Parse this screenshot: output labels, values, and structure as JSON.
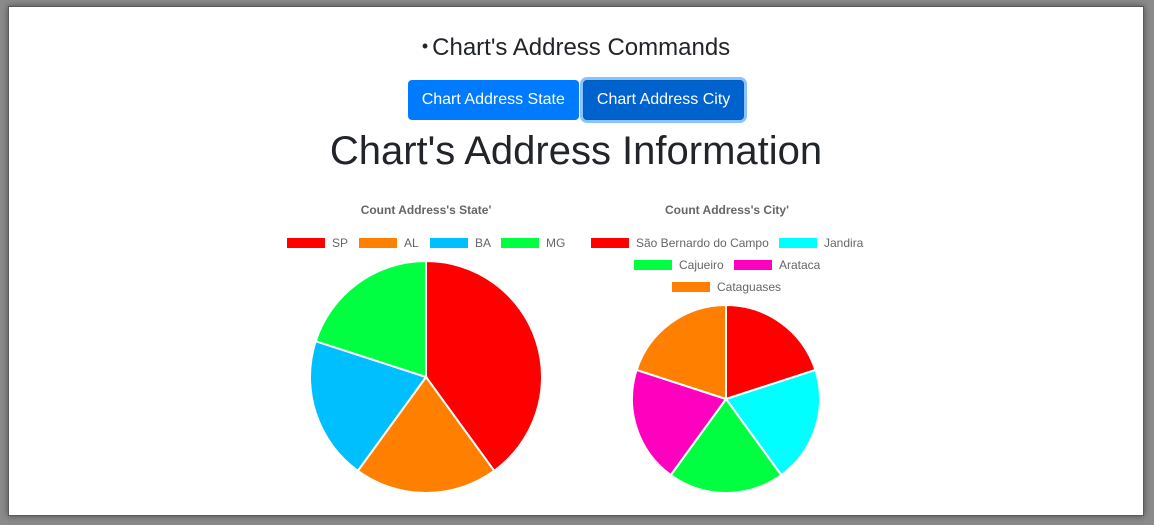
{
  "header": {
    "commands_title": "Chart's Address Commands",
    "buttons": [
      {
        "label": "Chart Address State"
      },
      {
        "label": "Chart Address City"
      }
    ],
    "info_title": "Chart's Address Information"
  },
  "chart_data": [
    {
      "type": "pie",
      "title": "Count Address's State'",
      "categories": [
        "SP",
        "AL",
        "BA",
        "MG"
      ],
      "values": [
        2,
        1,
        1,
        1
      ],
      "colors": [
        "#ff0000",
        "#ff8000",
        "#00bfff",
        "#00ff40"
      ],
      "legend": "top"
    },
    {
      "type": "pie",
      "title": "Count Address's City'",
      "categories": [
        "São Bernardo do Campo",
        "Jandira",
        "Cajueiro",
        "Arataca",
        "Cataguases"
      ],
      "values": [
        1,
        1,
        1,
        1,
        1
      ],
      "colors": [
        "#ff0000",
        "#00ffff",
        "#00ff40",
        "#ff00bf",
        "#ff8000"
      ],
      "legend": "top"
    }
  ]
}
